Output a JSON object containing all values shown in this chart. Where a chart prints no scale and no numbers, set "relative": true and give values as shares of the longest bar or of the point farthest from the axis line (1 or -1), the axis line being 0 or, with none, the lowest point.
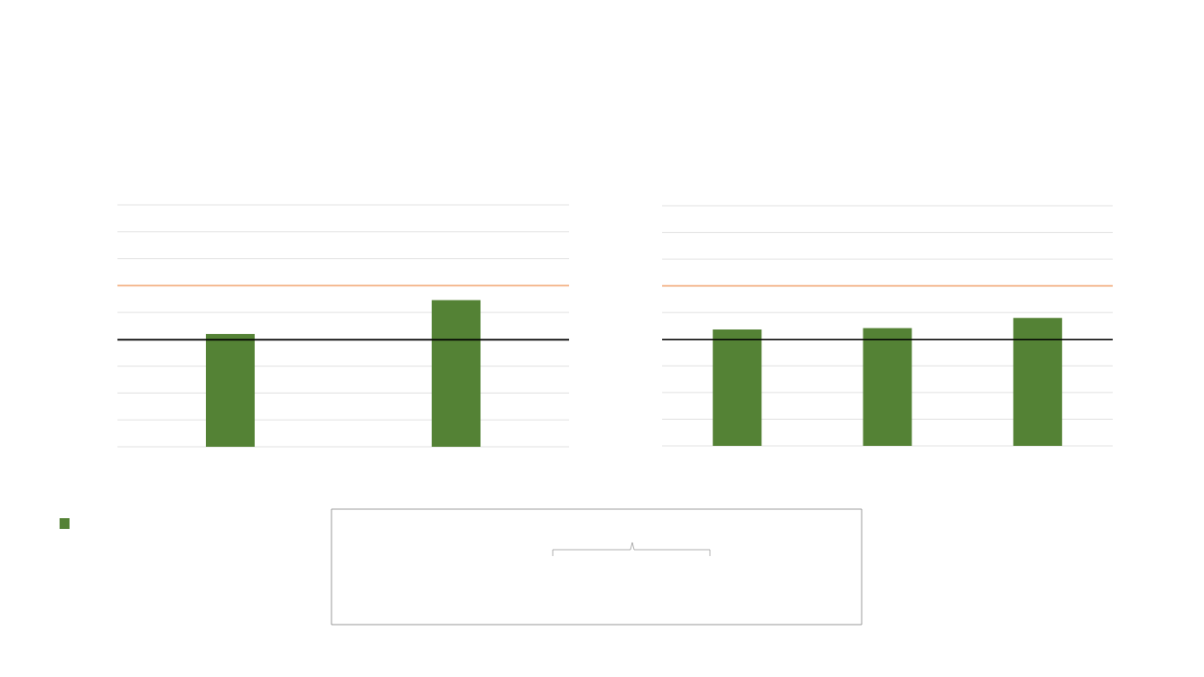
{
  "chart_data": [
    {
      "type": "bar",
      "relative": true,
      "categories": [
        null,
        null
      ],
      "values": [
        0.77,
        1
      ],
      "color": "#548235",
      "grid": "y",
      "ref_lines": [
        {
          "axis": "y",
          "value": 0.73,
          "color": "#000000"
        },
        {
          "axis": "y",
          "value": 1.1,
          "color": "#f4b183"
        }
      ]
    },
    {
      "type": "bar",
      "relative": true,
      "categories": [
        null,
        null,
        null
      ],
      "values": [
        0.91,
        0.92,
        1
      ],
      "color": "#548235",
      "grid": "y",
      "ref_lines": [
        {
          "axis": "y",
          "value": 0.83,
          "color": "#000000"
        },
        {
          "axis": "y",
          "value": 1.25,
          "color": "#f4b183"
        }
      ]
    }
  ]
}
